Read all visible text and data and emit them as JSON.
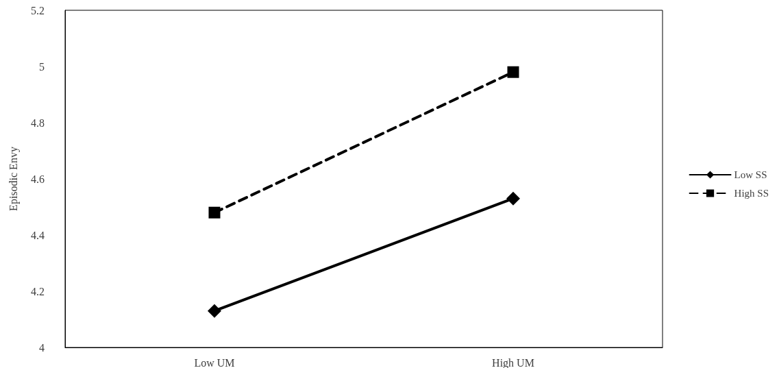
{
  "chart_data": {
    "type": "line",
    "ylabel": "Episodic Envy",
    "categories": [
      "Low UM",
      "High UM"
    ],
    "series": [
      {
        "name": "Low SS",
        "color": "#000000",
        "values": [
          4.13,
          4.53
        ],
        "marker": "diamond",
        "line_style": "solid"
      },
      {
        "name": "High SS",
        "color": "#000000",
        "values": [
          4.48,
          4.98
        ],
        "marker": "square",
        "line_style": "dashed"
      }
    ],
    "ylim": [
      4,
      5.2
    ],
    "yticks": [
      4,
      4.2,
      4.4,
      4.6,
      4.8,
      5,
      5.2
    ],
    "grid": false,
    "legend": "right"
  }
}
